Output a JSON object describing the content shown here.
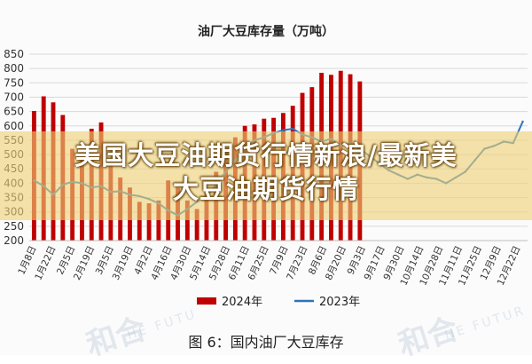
{
  "chart_data": {
    "type": "bar",
    "title": "油厂大豆库存量（万吨）",
    "ylim": [
      200,
      850
    ],
    "yticks": [
      200,
      250,
      300,
      350,
      400,
      450,
      500,
      550,
      600,
      650,
      700,
      750,
      800,
      850
    ],
    "grid": true,
    "legend_placement": "bottom",
    "x": [
      "1月8日",
      "1月15日",
      "1月22日",
      "1月29日",
      "2月5日",
      "2月12日",
      "2月19日",
      "2月26日",
      "3月5日",
      "3月12日",
      "3月19日",
      "3月26日",
      "4月2日",
      "4月9日",
      "4月16日",
      "4月23日",
      "4月30日",
      "5月7日",
      "5月14日",
      "5月21日",
      "5月28日",
      "6月4日",
      "6月11日",
      "6月18日",
      "6月25日",
      "7月2日",
      "7月9日",
      "7月16日",
      "7月23日",
      "7月30日",
      "8月6日",
      "8月13日",
      "8月20日",
      "8月27日",
      "9月3日",
      "9月10日",
      "9月17日",
      "9月24日",
      "10月1日",
      "10月8日",
      "10月15日",
      "10月22日",
      "10月29日",
      "11月5日",
      "11月12日",
      "11月19日",
      "11月26日",
      "12月3日",
      "12月10日",
      "12月17日",
      "12月24日",
      "12月31日"
    ],
    "tick_labels": [
      "1月8日",
      "1月22日",
      "2月5日",
      "2月19日",
      "3月5日",
      "3月19日",
      "4月2日",
      "4月16日",
      "4月30日",
      "5月14日",
      "5月28日",
      "6月11日",
      "6月25日",
      "7月9日",
      "7月23日",
      "8月6日",
      "8月20日",
      "9月3日",
      "9月17日",
      "9月30日",
      "10月14日",
      "10月28日",
      "11月11日",
      "11月25日",
      "12月9日",
      "12月22日"
    ],
    "series": [
      {
        "name": "2024年",
        "type": "bar",
        "color": "#c00000",
        "values": [
          652,
          703,
          682,
          638,
          520,
          515,
          590,
          612,
          470,
          420,
          385,
          335,
          330,
          340,
          410,
          385,
          340,
          310,
          380,
          440,
          520,
          560,
          600,
          605,
          625,
          628,
          645,
          670,
          715,
          735,
          785,
          778,
          792,
          780,
          755,
          null,
          null,
          null,
          null,
          null,
          null,
          null,
          null,
          null,
          null,
          null,
          null,
          null,
          null,
          null,
          null,
          null
        ]
      },
      {
        "name": "2023年",
        "type": "line",
        "color": "#2e75b6",
        "values": [
          410,
          390,
          360,
          395,
          405,
          400,
          385,
          390,
          370,
          372,
          360,
          355,
          345,
          330,
          305,
          288,
          310,
          335,
          355,
          395,
          440,
          480,
          525,
          550,
          560,
          575,
          585,
          590,
          570,
          560,
          545,
          555,
          530,
          540,
          520,
          495,
          470,
          445,
          430,
          415,
          430,
          420,
          415,
          400,
          420,
          440,
          480,
          520,
          530,
          545,
          540,
          615
        ]
      }
    ]
  },
  "legend": [
    {
      "label": "2024年",
      "color": "#c00000",
      "kind": "bar"
    },
    {
      "label": "2023年",
      "color": "#2e75b6",
      "kind": "line"
    }
  ],
  "overlay": {
    "line1": "美国大豆油期货行情新浪/最新美",
    "line2": "大豆油期货行情"
  },
  "caption": "图 6：国内油厂大豆库存",
  "watermark": {
    "text1": "和合",
    "text2": "HE FUTU",
    "text3": "和合",
    "text4": "HE FUTUR"
  }
}
